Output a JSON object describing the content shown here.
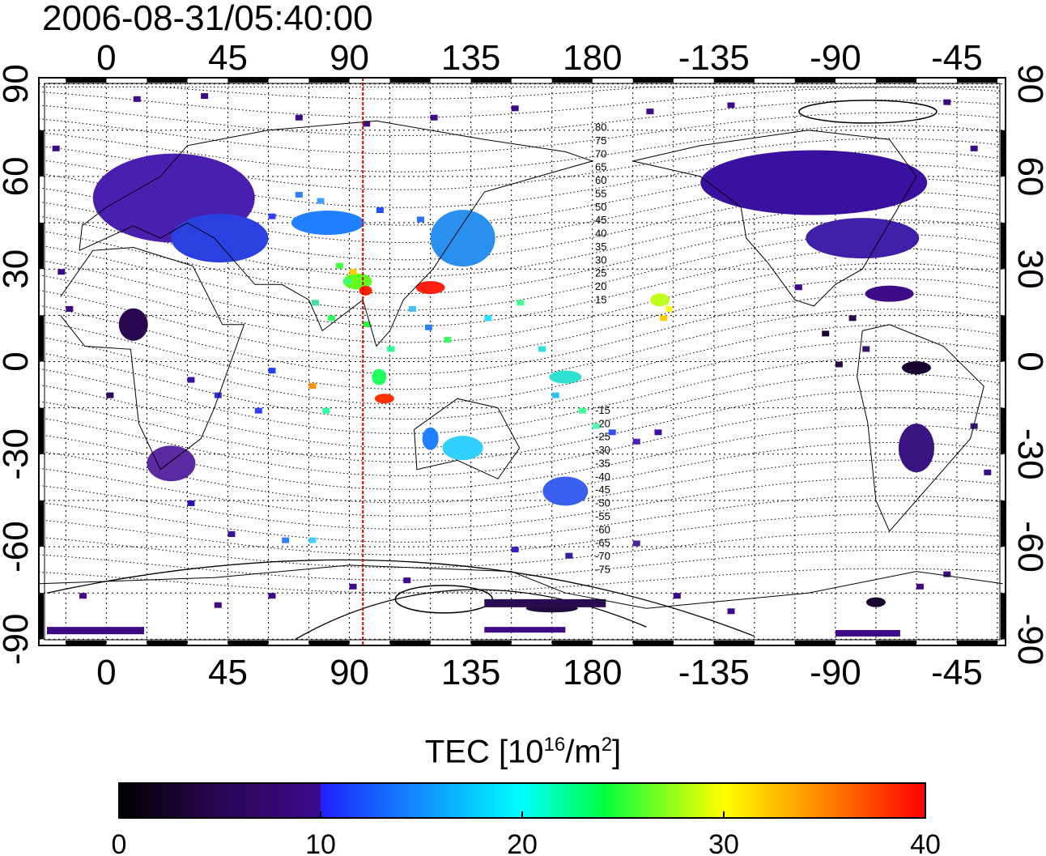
{
  "title": "2006-08-31/05:40:00",
  "map": {
    "lon_ticks": [
      {
        "lon": 0,
        "label": "0"
      },
      {
        "lon": 45,
        "label": "45"
      },
      {
        "lon": 90,
        "label": "90"
      },
      {
        "lon": 135,
        "label": "135"
      },
      {
        "lon": 180,
        "label": "180"
      },
      {
        "lon": 225,
        "label": "-135"
      },
      {
        "lon": 270,
        "label": "-90"
      },
      {
        "lon": 315,
        "label": "-45"
      }
    ],
    "lat_ticks": [
      {
        "lat": 90,
        "label": "90"
      },
      {
        "lat": 60,
        "label": "60"
      },
      {
        "lat": 30,
        "label": "30"
      },
      {
        "lat": 0,
        "label": "0"
      },
      {
        "lat": -30,
        "label": "-30"
      },
      {
        "lat": -60,
        "label": "-60"
      },
      {
        "lat": -90,
        "label": "-90"
      }
    ],
    "lon_range": [
      -25,
      333
    ],
    "lat_range": [
      -92,
      92
    ],
    "grid": "dotted",
    "meridian_marker_lon": 95,
    "magnetic_lat_labels": [
      "80",
      "75",
      "70",
      "65",
      "60",
      "55",
      "50",
      "45",
      "40",
      "35",
      "30",
      "25",
      "20",
      "15",
      "-15",
      "-20",
      "-25",
      "-30",
      "-35",
      "-40",
      "-45",
      "-50",
      "-55",
      "-60",
      "-65",
      "-70",
      "-75"
    ]
  },
  "colorbar": {
    "label_main": "TEC  [10",
    "label_exp1": "16",
    "label_mid": "/m",
    "label_exp2": "2",
    "label_end": "]",
    "ticks": [
      "0",
      "10",
      "20",
      "30",
      "40"
    ],
    "range": [
      0,
      40
    ],
    "colormap": [
      "#000000",
      "#3a0a6e",
      "#0000ff",
      "#00ffff",
      "#00ff00",
      "#ffff00",
      "#ff0000"
    ]
  },
  "colors": {
    "line_red": "#e00000",
    "frame": "#000000"
  }
}
